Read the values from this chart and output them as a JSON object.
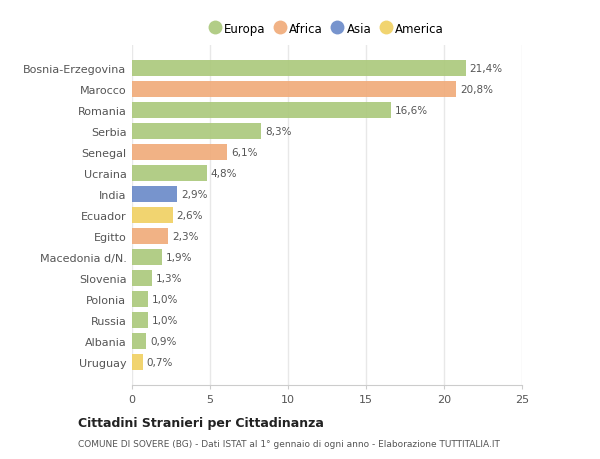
{
  "countries": [
    "Bosnia-Erzegovina",
    "Marocco",
    "Romania",
    "Serbia",
    "Senegal",
    "Ucraina",
    "India",
    "Ecuador",
    "Egitto",
    "Macedonia d/N.",
    "Slovenia",
    "Polonia",
    "Russia",
    "Albania",
    "Uruguay"
  ],
  "values": [
    21.4,
    20.8,
    16.6,
    8.3,
    6.1,
    4.8,
    2.9,
    2.6,
    2.3,
    1.9,
    1.3,
    1.0,
    1.0,
    0.9,
    0.7
  ],
  "labels": [
    "21,4%",
    "20,8%",
    "16,6%",
    "8,3%",
    "6,1%",
    "4,8%",
    "2,9%",
    "2,6%",
    "2,3%",
    "1,9%",
    "1,3%",
    "1,0%",
    "1,0%",
    "0,9%",
    "0,7%"
  ],
  "continents": [
    "Europa",
    "Africa",
    "Europa",
    "Europa",
    "Africa",
    "Europa",
    "Asia",
    "America",
    "Africa",
    "Europa",
    "Europa",
    "Europa",
    "Europa",
    "Europa",
    "America"
  ],
  "colors": {
    "Europa": "#aac87a",
    "Africa": "#f0aa78",
    "Asia": "#6888c8",
    "America": "#f0d060"
  },
  "xlim": [
    0,
    25
  ],
  "xticks": [
    0,
    5,
    10,
    15,
    20,
    25
  ],
  "title": "Cittadini Stranieri per Cittadinanza",
  "subtitle": "COMUNE DI SOVERE (BG) - Dati ISTAT al 1° gennaio di ogni anno - Elaborazione TUTTITALIA.IT",
  "background_color": "#ffffff",
  "grid_color": "#e8e8e8",
  "bar_height": 0.75
}
